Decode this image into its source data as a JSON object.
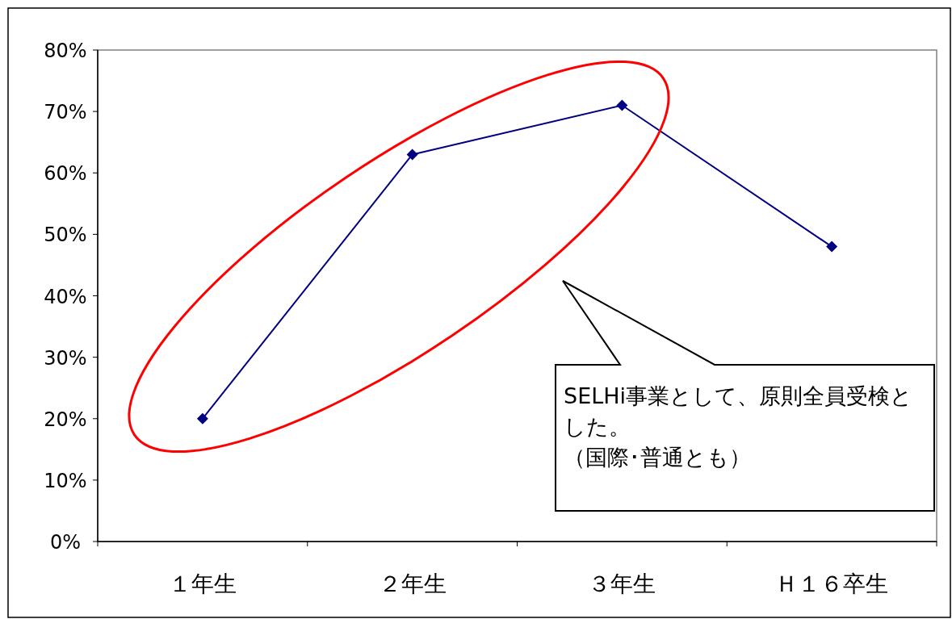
{
  "chart_data": {
    "type": "line",
    "categories": [
      "１年生",
      "２年生",
      "３年生",
      "Ｈ１６卒生"
    ],
    "series": [
      {
        "color": "#000080",
        "values": [
          20,
          63,
          71,
          48
        ]
      }
    ],
    "ylim": [
      0,
      80
    ],
    "yticks": [
      {
        "value": 0,
        "label": "0%"
      },
      {
        "value": 10,
        "label": "10%"
      },
      {
        "value": 20,
        "label": "20%"
      },
      {
        "value": 30,
        "label": "30%"
      },
      {
        "value": 40,
        "label": "40%"
      },
      {
        "value": 50,
        "label": "50%"
      },
      {
        "value": 60,
        "label": "60%"
      },
      {
        "value": 70,
        "label": "70%"
      },
      {
        "value": 80,
        "label": "80%"
      }
    ],
    "marker": "diamond",
    "grid": false,
    "annotations": [
      "SELHi事業として、原則全員受検とした。",
      "（国際･普通とも）"
    ]
  }
}
